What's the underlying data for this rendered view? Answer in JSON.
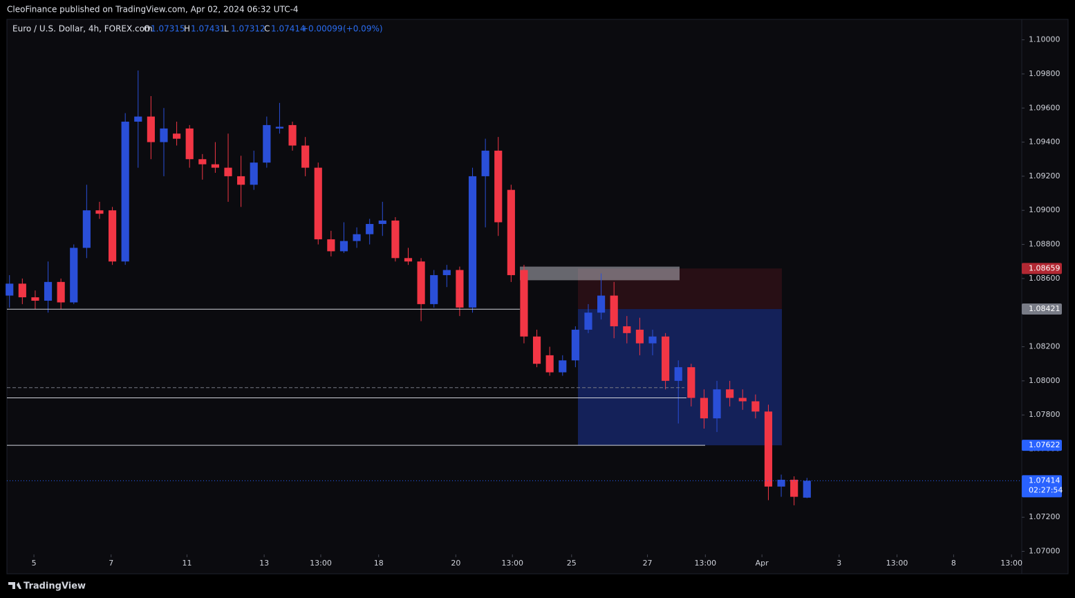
{
  "header": {
    "publisher": "CleoFinance published on TradingView.com, Apr 02, 2024 06:32 UTC-4",
    "brand": "TradingView"
  },
  "chart_data": {
    "type": "candlestick",
    "title": "Euro / U.S. Dollar, 4h, FOREX.com",
    "ohlc_letters": [
      "O",
      "H",
      "L",
      "C"
    ],
    "change": "+0.00099",
    "change_pct": "(+0.09%)",
    "countdown": "02:27:54",
    "up_color": "#2a4fd8",
    "down_color": "#f23645",
    "xlim": [
      -0.2,
      78.7
    ],
    "xticks": [
      {
        "value": 1.9,
        "label": "5"
      },
      {
        "value": 7.9,
        "label": "7"
      },
      {
        "value": 13.8,
        "label": "11"
      },
      {
        "value": 19.8,
        "label": "13"
      },
      {
        "value": 24.2,
        "label": "13:00"
      },
      {
        "value": 28.7,
        "label": "18"
      },
      {
        "value": 34.7,
        "label": "20"
      },
      {
        "value": 39.1,
        "label": "13:00"
      },
      {
        "value": 43.7,
        "label": "25"
      },
      {
        "value": 49.6,
        "label": "27"
      },
      {
        "value": 54.1,
        "label": "13:00"
      },
      {
        "value": 58.5,
        "label": "Apr"
      },
      {
        "value": 64.5,
        "label": "3"
      },
      {
        "value": 69.0,
        "label": "13:00"
      },
      {
        "value": 73.4,
        "label": "8"
      },
      {
        "value": 77.9,
        "label": "13:00"
      }
    ],
    "ylim": [
      1.0699,
      1.1012
    ],
    "yticks": [
      {
        "value": 1.07,
        "label": "1.07000"
      },
      {
        "value": 1.072,
        "label": "1.07200"
      },
      {
        "value": 1.074,
        "label": "1.07400"
      },
      {
        "value": 1.076,
        "label": "1.07600"
      },
      {
        "value": 1.078,
        "label": "1.07800"
      },
      {
        "value": 1.08,
        "label": "1.08000"
      },
      {
        "value": 1.082,
        "label": "1.08200"
      },
      {
        "value": 1.084,
        "label": "1.08400"
      },
      {
        "value": 1.086,
        "label": "1.08600"
      },
      {
        "value": 1.088,
        "label": "1.08800"
      },
      {
        "value": 1.09,
        "label": "1.09000"
      },
      {
        "value": 1.092,
        "label": "1.09200"
      },
      {
        "value": 1.094,
        "label": "1.09400"
      },
      {
        "value": 1.096,
        "label": "1.09600"
      },
      {
        "value": 1.098,
        "label": "1.09800"
      },
      {
        "value": 1.1,
        "label": "1.10000"
      }
    ],
    "levels": [
      1.0842,
      1.0796,
      1.079,
      1.07622
    ],
    "supply_zone": [
      1.0859,
      1.0867
    ],
    "stop_zone": [
      1.08421,
      1.08659
    ],
    "target_zone": [
      1.07622,
      1.08421
    ],
    "candles": [
      [
        1.085,
        1.0862,
        1.0843,
        1.0857
      ],
      [
        1.0857,
        1.086,
        1.0845,
        1.0849
      ],
      [
        1.0849,
        1.0853,
        1.0842,
        1.0847
      ],
      [
        1.0847,
        1.087,
        1.084,
        1.0858
      ],
      [
        1.0858,
        1.086,
        1.0842,
        1.0846
      ],
      [
        1.0846,
        1.088,
        1.0845,
        1.0878
      ],
      [
        1.0878,
        1.0915,
        1.0872,
        1.09
      ],
      [
        1.09,
        1.0905,
        1.0895,
        1.0898
      ],
      [
        1.09,
        1.0902,
        1.0868,
        1.087
      ],
      [
        1.087,
        1.0957,
        1.0868,
        1.0952
      ],
      [
        1.0952,
        1.0982,
        1.0925,
        1.0955
      ],
      [
        1.0955,
        1.0967,
        1.093,
        1.094
      ],
      [
        1.094,
        1.096,
        1.092,
        1.0948
      ],
      [
        1.0945,
        1.0952,
        1.0938,
        1.0942
      ],
      [
        1.0948,
        1.095,
        1.0925,
        1.093
      ],
      [
        1.093,
        1.0933,
        1.0918,
        1.0927
      ],
      [
        1.0927,
        1.094,
        1.0922,
        1.0925
      ],
      [
        1.0925,
        1.0945,
        1.0905,
        1.092
      ],
      [
        1.092,
        1.0932,
        1.0902,
        1.0915
      ],
      [
        1.0915,
        1.0935,
        1.0912,
        1.0928
      ],
      [
        1.0928,
        1.0955,
        1.0925,
        1.095
      ],
      [
        1.0948,
        1.0963,
        1.0945,
        1.0949
      ],
      [
        1.095,
        1.0952,
        1.0935,
        1.0938
      ],
      [
        1.0938,
        1.0943,
        1.092,
        1.0925
      ],
      [
        1.0925,
        1.0928,
        1.088,
        1.0883
      ],
      [
        1.0883,
        1.0888,
        1.0873,
        1.0876
      ],
      [
        1.0876,
        1.0893,
        1.0875,
        1.0882
      ],
      [
        1.0882,
        1.089,
        1.0878,
        1.0886
      ],
      [
        1.0886,
        1.0895,
        1.088,
        1.0892
      ],
      [
        1.0892,
        1.0905,
        1.0885,
        1.0894
      ],
      [
        1.0894,
        1.0896,
        1.087,
        1.0872
      ],
      [
        1.0872,
        1.0878,
        1.0868,
        1.087
      ],
      [
        1.087,
        1.0872,
        1.0835,
        1.0845
      ],
      [
        1.0845,
        1.0865,
        1.0843,
        1.0862
      ],
      [
        1.0862,
        1.0868,
        1.0855,
        1.0865
      ],
      [
        1.0865,
        1.0867,
        1.0838,
        1.0843
      ],
      [
        1.0843,
        1.0925,
        1.084,
        1.092
      ],
      [
        1.092,
        1.0942,
        1.089,
        1.0935
      ],
      [
        1.0935,
        1.0943,
        1.0885,
        1.0893
      ],
      [
        1.0912,
        1.0915,
        1.0858,
        1.0862
      ],
      [
        1.0865,
        1.0868,
        1.0822,
        1.0826
      ],
      [
        1.0826,
        1.083,
        1.0808,
        1.081
      ],
      [
        1.0815,
        1.082,
        1.0803,
        1.0805
      ],
      [
        1.0805,
        1.0815,
        1.0803,
        1.0812
      ],
      [
        1.0812,
        1.0832,
        1.0808,
        1.083
      ],
      [
        1.083,
        1.0845,
        1.0828,
        1.084
      ],
      [
        1.084,
        1.0863,
        1.0836,
        1.085
      ],
      [
        1.085,
        1.0858,
        1.0825,
        1.0832
      ],
      [
        1.0832,
        1.0838,
        1.0822,
        1.0828
      ],
      [
        1.083,
        1.0837,
        1.0815,
        1.0822
      ],
      [
        1.0822,
        1.083,
        1.0815,
        1.0826
      ],
      [
        1.0826,
        1.0828,
        1.0795,
        1.08
      ],
      [
        1.08,
        1.0812,
        1.0775,
        1.0808
      ],
      [
        1.0808,
        1.081,
        1.0785,
        1.079
      ],
      [
        1.079,
        1.0795,
        1.0772,
        1.0778
      ],
      [
        1.0778,
        1.08,
        1.077,
        1.0795
      ],
      [
        1.0795,
        1.08,
        1.0785,
        1.079
      ],
      [
        1.079,
        1.0795,
        1.0783,
        1.0788
      ],
      [
        1.0788,
        1.0792,
        1.0778,
        1.0782
      ],
      [
        1.0782,
        1.0786,
        1.073,
        1.0738
      ],
      [
        1.0738,
        1.0745,
        1.0732,
        1.0742
      ],
      [
        1.0742,
        1.0744,
        1.0727,
        1.0732
      ],
      [
        1.07315,
        1.07431,
        1.07312,
        1.07414
      ]
    ]
  }
}
